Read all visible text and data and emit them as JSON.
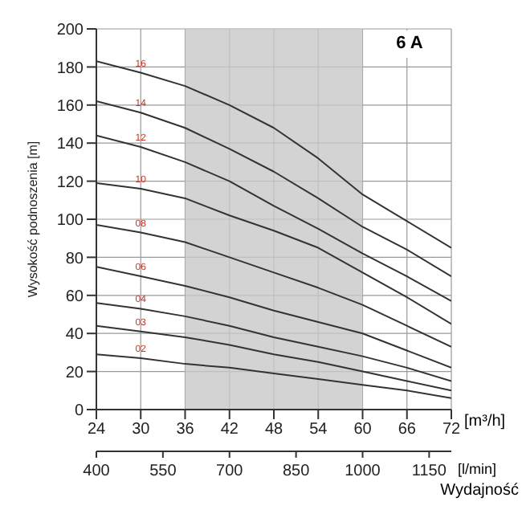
{
  "chart_data": {
    "type": "line",
    "title": "6 A",
    "xlabel": "[m³/h]",
    "x2label": "[l/min]",
    "ylabel": "Wysokość podnoszenia [m]",
    "annotations": [
      "Wydajność"
    ],
    "x": [
      24,
      30,
      36,
      42,
      48,
      54,
      60,
      66,
      72
    ],
    "series": [
      {
        "name": "16",
        "color": "#333333",
        "values": [
          183,
          177,
          170,
          160,
          148,
          132,
          113,
          99,
          85
        ]
      },
      {
        "name": "14",
        "color": "#333333",
        "values": [
          162,
          156,
          148,
          137,
          125,
          111,
          96,
          84,
          70
        ]
      },
      {
        "name": "12",
        "color": "#333333",
        "values": [
          144,
          138,
          130,
          120,
          107,
          95,
          82,
          70,
          57
        ]
      },
      {
        "name": "10",
        "color": "#333333",
        "values": [
          119,
          116,
          111,
          102,
          94,
          85,
          72,
          59,
          45
        ]
      },
      {
        "name": "08",
        "color": "#333333",
        "values": [
          97,
          93,
          88,
          80,
          72,
          64,
          55,
          44,
          33
        ]
      },
      {
        "name": "06",
        "color": "#333333",
        "values": [
          75,
          70,
          65,
          59,
          52,
          46,
          40,
          31,
          22
        ]
      },
      {
        "name": "04",
        "color": "#333333",
        "values": [
          56,
          53,
          49,
          44,
          38,
          33,
          28,
          22,
          15
        ]
      },
      {
        "name": "03",
        "color": "#333333",
        "values": [
          44,
          41,
          38,
          34,
          29,
          25,
          20,
          15,
          10
        ]
      },
      {
        "name": "02",
        "color": "#333333",
        "values": [
          29,
          27,
          24,
          22,
          19,
          16,
          13,
          10,
          6
        ]
      }
    ],
    "xlim": [
      24,
      72
    ],
    "xticks": [
      24,
      30,
      36,
      42,
      48,
      54,
      60,
      66,
      72
    ],
    "x2lim": [
      400,
      1200
    ],
    "x2ticks": [
      400,
      550,
      700,
      850,
      1000,
      1150
    ],
    "ylim": [
      0,
      200
    ],
    "yticks": [
      0,
      20,
      40,
      60,
      80,
      100,
      120,
      140,
      160,
      180,
      200
    ],
    "bands": [
      {
        "axis": "x",
        "from": 36,
        "to": 60,
        "color": "#c8c8c8"
      }
    ],
    "grid": true,
    "marker": "none",
    "line_style": "solid"
  }
}
